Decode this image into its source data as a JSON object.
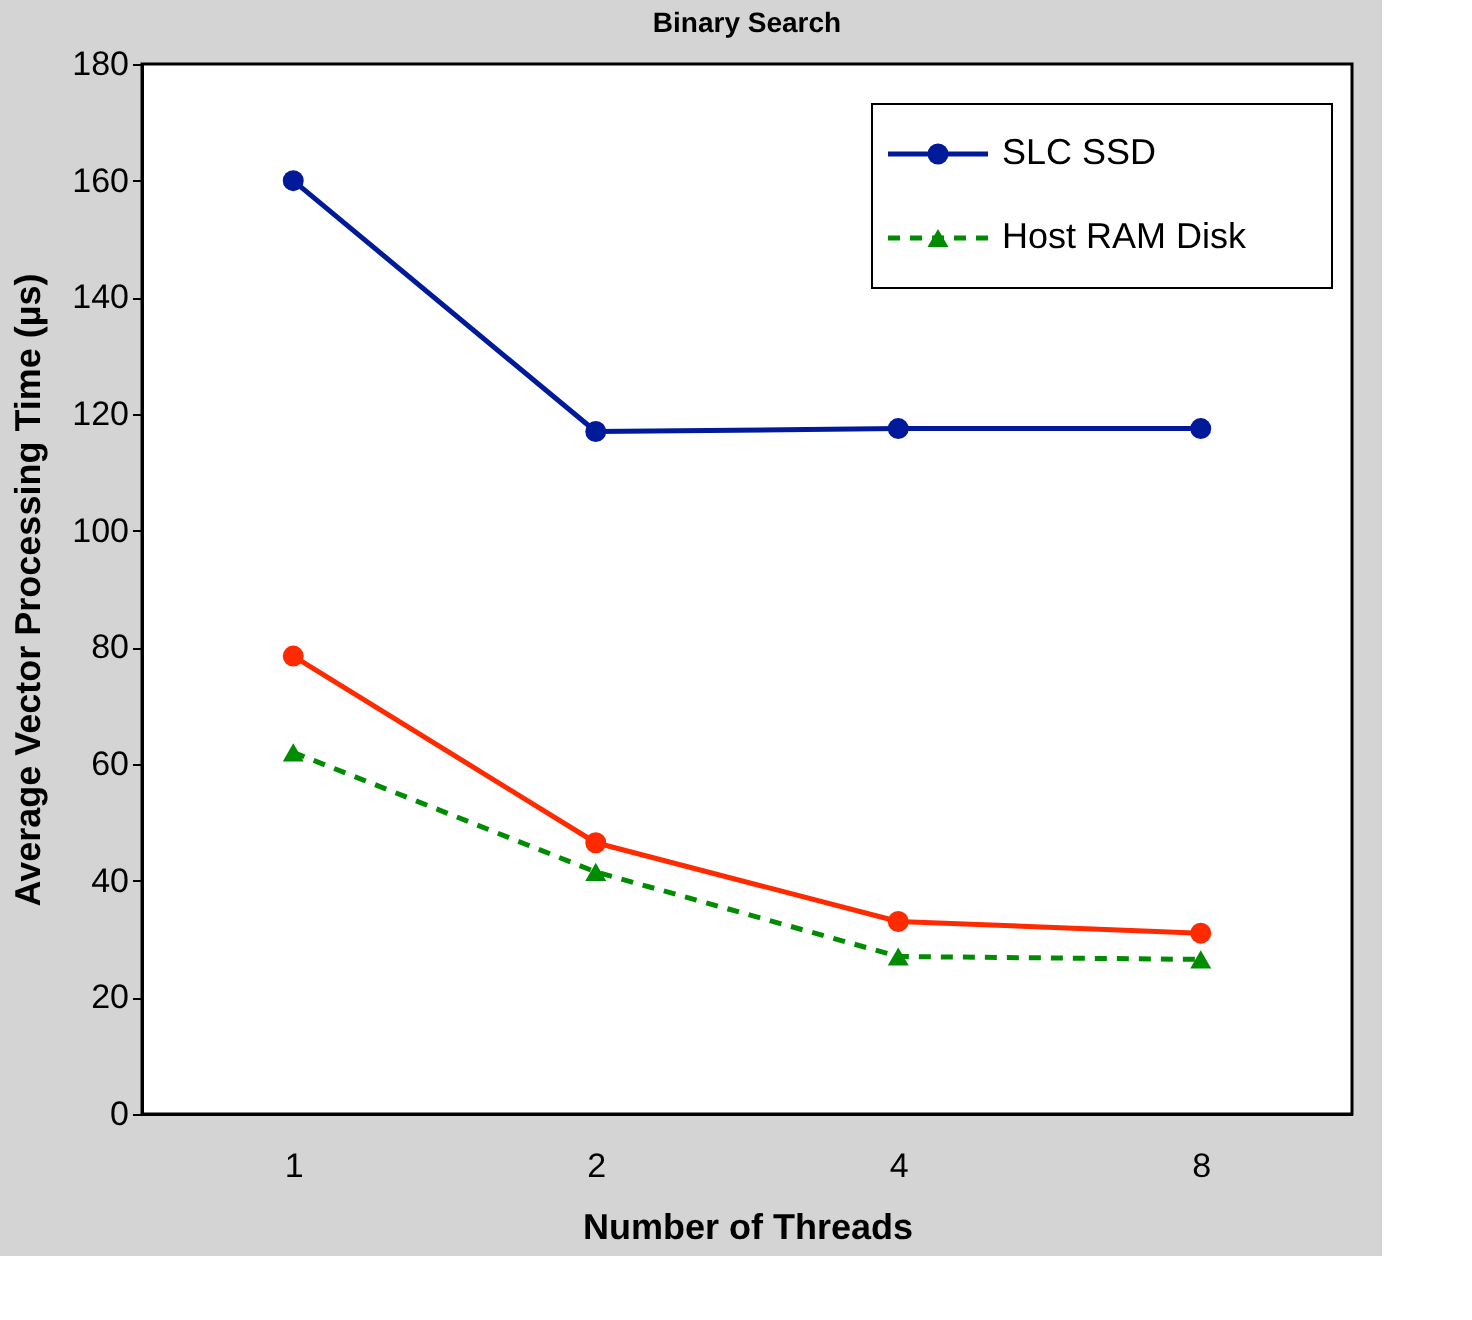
{
  "chart_data": {
    "type": "line",
    "title": "Binary Search",
    "xlabel": "Number of Threads",
    "ylabel": "Average Vector Processing Time (µs)",
    "categories": [
      "1",
      "2",
      "4",
      "8"
    ],
    "series": [
      {
        "name": "SLC SSD",
        "color": "#001a99",
        "marker": "circle",
        "line_style": "solid",
        "values": [
          160,
          117,
          117.5,
          117.5
        ]
      },
      {
        "color": "#ff2a00",
        "marker": "circle",
        "line_style": "solid",
        "values": [
          78.5,
          46.5,
          33,
          31
        ]
      },
      {
        "name": "Host RAM Disk",
        "color": "#008c00",
        "marker": "triangle",
        "line_style": "dashed",
        "values": [
          62,
          41.5,
          27,
          26.5
        ]
      }
    ],
    "ylim": [
      0,
      180
    ],
    "yticks": [
      0,
      20,
      40,
      60,
      80,
      100,
      120,
      140,
      160,
      180
    ],
    "grid": false,
    "legend": "top right"
  }
}
